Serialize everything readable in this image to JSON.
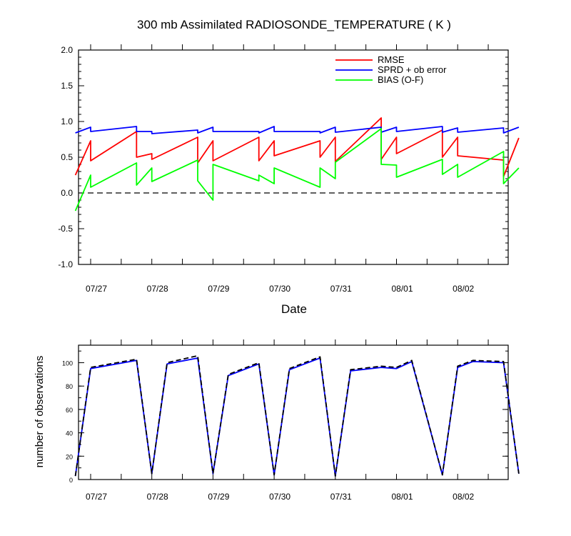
{
  "chart_data": [
    {
      "type": "line",
      "title": "300 mb Assimilated RADIOSONDE_TEMPERATURE ( K )",
      "xlabel": "Date",
      "ylabel": "",
      "ylim": [
        -1.0,
        2.0
      ],
      "yticks": [
        "-1.0",
        "-0.5",
        "0.0",
        "0.5",
        "1.0",
        "1.5",
        "2.0"
      ],
      "x_tick_labels": [
        "07/27",
        "07/28",
        "07/29",
        "07/30",
        "07/31",
        "08/01",
        "08/02"
      ],
      "x_tick_dates": [
        "07/27",
        "07/28",
        "07/29",
        "07/30",
        "07/31",
        "08/01",
        "08/02"
      ],
      "grid": false,
      "legend_position": "top-right",
      "reference_line": {
        "y": 0.0,
        "style": "dashed"
      },
      "series": [
        {
          "name": "RMSE",
          "color": "#ff0000",
          "x": [
            "07/26 18:00",
            "07/27 00:00",
            "07/27 00:00",
            "07/27 18:00",
            "07/27 18:00",
            "07/28 00:00",
            "07/28 00:00",
            "07/28 18:00",
            "07/28 18:00",
            "07/29 00:00",
            "07/29 00:00",
            "07/29 18:00",
            "07/29 18:00",
            "07/30 00:00",
            "07/30 00:00",
            "07/30 18:00",
            "07/30 18:00",
            "07/31 00:00",
            "07/31 00:00",
            "07/31 18:00",
            "07/31 18:00",
            "08/01 00:00",
            "08/01 00:00",
            "08/01 18:00",
            "08/01 18:00",
            "08/02 00:00",
            "08/02 00:00",
            "08/02 18:00",
            "08/02 18:00",
            "08/03 00:00"
          ],
          "y": [
            0.25,
            0.73,
            0.45,
            0.86,
            0.5,
            0.55,
            0.47,
            0.78,
            0.42,
            0.73,
            0.45,
            0.78,
            0.45,
            0.73,
            0.52,
            0.73,
            0.5,
            0.78,
            0.44,
            1.05,
            0.47,
            0.78,
            0.55,
            0.88,
            0.5,
            0.78,
            0.52,
            0.46,
            0.23,
            0.77
          ]
        },
        {
          "name": "SPRD + ob error",
          "color": "#0000ff",
          "x": [
            "07/26 18:00",
            "07/27 00:00",
            "07/27 00:00",
            "07/27 18:00",
            "07/27 18:00",
            "07/28 00:00",
            "07/28 00:00",
            "07/28 18:00",
            "07/28 18:00",
            "07/29 00:00",
            "07/29 00:00",
            "07/29 18:00",
            "07/29 18:00",
            "07/30 00:00",
            "07/30 00:00",
            "07/30 18:00",
            "07/30 18:00",
            "07/31 00:00",
            "07/31 00:00",
            "07/31 18:00",
            "07/31 18:00",
            "08/01 00:00",
            "08/01 00:00",
            "08/01 18:00",
            "08/01 18:00",
            "08/02 00:00",
            "08/02 00:00",
            "08/02 18:00",
            "08/02 18:00",
            "08/03 00:00"
          ],
          "y": [
            0.84,
            0.92,
            0.86,
            0.93,
            0.86,
            0.86,
            0.83,
            0.88,
            0.84,
            0.92,
            0.86,
            0.86,
            0.84,
            0.93,
            0.86,
            0.86,
            0.84,
            0.92,
            0.85,
            0.92,
            0.85,
            0.92,
            0.86,
            0.93,
            0.85,
            0.91,
            0.85,
            0.91,
            0.84,
            0.92
          ]
        },
        {
          "name": "BIAS (O-F)",
          "color": "#00ff00",
          "x": [
            "07/26 18:00",
            "07/27 00:00",
            "07/27 00:00",
            "07/27 18:00",
            "07/27 18:00",
            "07/28 00:00",
            "07/28 00:00",
            "07/28 18:00",
            "07/28 18:00",
            "07/29 00:00",
            "07/29 00:00",
            "07/29 18:00",
            "07/29 18:00",
            "07/30 00:00",
            "07/30 00:00",
            "07/30 18:00",
            "07/30 18:00",
            "07/31 00:00",
            "07/31 00:00",
            "07/31 18:00",
            "07/31 18:00",
            "08/01 00:00",
            "08/01 00:00",
            "08/01 18:00",
            "08/01 18:00",
            "08/02 00:00",
            "08/02 00:00",
            "08/02 18:00",
            "08/02 18:00",
            "08/03 00:00"
          ],
          "y": [
            -0.25,
            0.25,
            0.08,
            0.42,
            0.11,
            0.35,
            0.16,
            0.46,
            0.17,
            -0.1,
            0.4,
            0.17,
            0.25,
            0.13,
            0.35,
            0.08,
            0.35,
            0.2,
            0.43,
            0.9,
            0.4,
            0.39,
            0.22,
            0.47,
            0.26,
            0.4,
            0.22,
            0.58,
            0.13,
            0.35
          ]
        }
      ]
    },
    {
      "type": "line",
      "title": "",
      "xlabel": "",
      "ylabel": "number of observations",
      "ylim": [
        0,
        115
      ],
      "yticks": [
        "0",
        "20",
        "40",
        "60",
        "80",
        "100"
      ],
      "x_tick_labels": [
        "07/27",
        "07/28",
        "07/29",
        "07/30",
        "07/31",
        "08/01",
        "08/02"
      ],
      "grid": false,
      "series": [
        {
          "name": "",
          "color": "#0000ff",
          "style": "solid",
          "x": [
            "07/26 18:00",
            "07/27 00:00",
            "07/27 18:00",
            "07/28 00:00",
            "07/28 06:00",
            "07/28 18:00",
            "07/29 00:00",
            "07/29 06:00",
            "07/29 18:00",
            "07/30 00:00",
            "07/30 06:00",
            "07/30 18:00",
            "07/31 00:00",
            "07/31 06:00",
            "07/31 18:00",
            "08/01 00:00",
            "08/01 06:00",
            "08/01 18:00",
            "08/02 00:00",
            "08/02 06:00",
            "08/02 18:00",
            "08/03 00:00"
          ],
          "y": [
            3,
            95,
            102,
            5,
            99,
            104,
            5,
            89,
            99,
            4,
            94,
            104,
            3,
            93,
            96,
            95,
            101,
            4,
            96,
            101,
            100,
            5
          ]
        },
        {
          "name": "",
          "color": "#000000",
          "style": "dashed",
          "x": [
            "07/26 18:00",
            "07/27 00:00",
            "07/27 18:00",
            "07/28 00:00",
            "07/28 06:00",
            "07/28 18:00",
            "07/29 00:00",
            "07/29 06:00",
            "07/29 18:00",
            "07/30 00:00",
            "07/30 06:00",
            "07/30 18:00",
            "07/31 00:00",
            "07/31 06:00",
            "07/31 18:00",
            "08/01 00:00",
            "08/01 06:00",
            "08/01 18:00",
            "08/02 00:00",
            "08/02 06:00",
            "08/02 18:00",
            "08/03 00:00"
          ],
          "y": [
            3,
            96,
            103,
            5,
            100,
            106,
            5,
            90,
            100,
            4,
            95,
            105,
            3,
            94,
            97,
            96,
            102,
            4,
            97,
            102,
            101,
            5
          ]
        }
      ]
    }
  ]
}
